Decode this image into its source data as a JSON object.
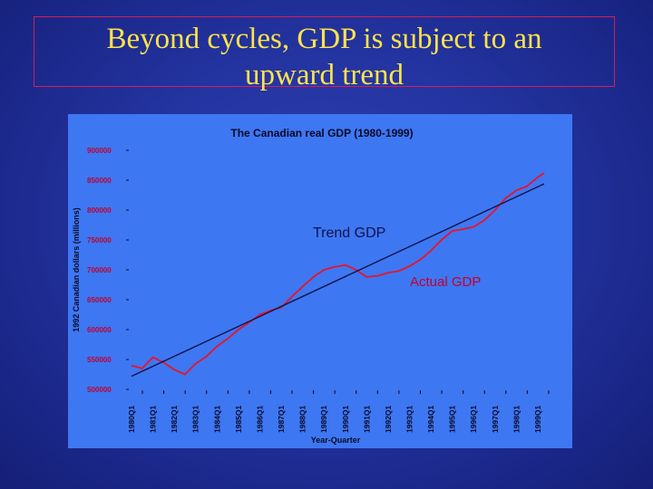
{
  "slide": {
    "title_line1": "Beyond cycles, GDP is subject to an",
    "title_line2": "upward trend"
  },
  "colors": {
    "title": "#ffe34a",
    "title_border": "#d0205a",
    "chart_bg": "#3e77f2",
    "actual_line": "#e8142a",
    "trend_line": "#10124a",
    "tick_red": "#c3002e",
    "axis_text": "#0a0a28"
  },
  "chart_data": {
    "type": "line",
    "title": "The Canadian real GDP (1980-1999)",
    "xlabel": "Year-Quarter",
    "ylabel": "1992 Canadian dollars (millions)",
    "ylim": [
      500000,
      900000
    ],
    "yticks": [
      900000,
      850000,
      800000,
      750000,
      700000,
      650000,
      600000,
      550000,
      500000
    ],
    "categories": [
      "1980Q1",
      "1981Q1",
      "1982Q1",
      "1983Q1",
      "1984Q1",
      "1985Q1",
      "1986Q1",
      "1987Q1",
      "1988Q1",
      "1989Q1",
      "1990Q1",
      "1991Q1",
      "1992Q1",
      "1993Q1",
      "1994Q1",
      "1995Q1",
      "1996Q1",
      "1997Q1",
      "1998Q1",
      "1999Q1"
    ],
    "annotations": [
      {
        "text": "Trend GDP",
        "color": "#10124a"
      },
      {
        "text": "Actual GDP",
        "color": "#c3002e"
      }
    ],
    "series": [
      {
        "name": "Actual GDP",
        "x": [
          1980.0,
          1980.5,
          1981.0,
          1981.5,
          1982.0,
          1982.5,
          1983.0,
          1983.5,
          1984.0,
          1984.5,
          1985.0,
          1985.5,
          1986.0,
          1986.5,
          1987.0,
          1987.5,
          1988.0,
          1988.5,
          1989.0,
          1989.5,
          1990.0,
          1990.5,
          1991.0,
          1991.5,
          1992.0,
          1992.5,
          1993.0,
          1993.5,
          1994.0,
          1994.5,
          1995.0,
          1995.5,
          1996.0,
          1996.5,
          1997.0,
          1997.5,
          1998.0,
          1998.5,
          1999.0,
          1999.3
        ],
        "values": [
          540000,
          535000,
          554000,
          545000,
          533000,
          525000,
          543000,
          555000,
          572000,
          585000,
          600000,
          612000,
          625000,
          632000,
          637000,
          655000,
          672000,
          688000,
          700000,
          705000,
          708000,
          700000,
          688000,
          690000,
          695000,
          698000,
          706000,
          717000,
          732000,
          750000,
          765000,
          768000,
          772000,
          783000,
          800000,
          820000,
          833000,
          840000,
          855000,
          862000
        ]
      },
      {
        "name": "Trend GDP",
        "x": [
          1980.0,
          1999.3
        ],
        "values": [
          522000,
          844000
        ]
      }
    ]
  }
}
